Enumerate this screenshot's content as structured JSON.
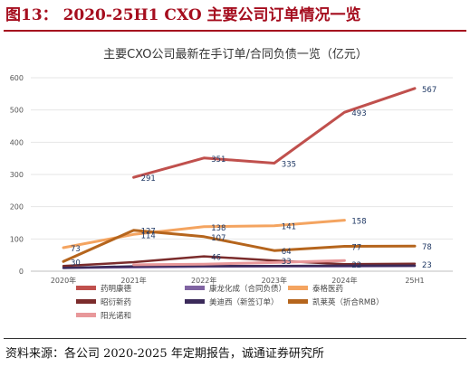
{
  "figure_title": "图13：  2020-25H1 CXO 主要公司订单情况一览",
  "source_note": "资料来源：各公司 2020-2025 年定期报告，诚通证券研究所",
  "chart_data": {
    "type": "line",
    "title": "主要CXO公司最新在手订单/合同负债一览（亿元）",
    "xlabel": "",
    "ylabel": "",
    "categories": [
      "2020年",
      "2021年",
      "2022年",
      "2023年",
      "2024年",
      "25H1"
    ],
    "yticks": [
      0,
      100,
      200,
      300,
      400,
      500,
      600
    ],
    "ylim": [
      0,
      600
    ],
    "grid": true,
    "legend_position": "bottom",
    "series": [
      {
        "name": "药明康德",
        "color": "#c0504d",
        "width": 3,
        "values": [
          null,
          291,
          351,
          335,
          493,
          567
        ],
        "labels": [
          "",
          "291",
          "351",
          "335",
          "493",
          "567"
        ]
      },
      {
        "name": "康龙化成（合同负债）",
        "color": "#8064a2",
        "width": 2.5,
        "values": [
          10,
          12,
          14,
          15,
          15,
          16
        ],
        "labels": []
      },
      {
        "name": "泰格医药",
        "color": "#f4a460",
        "width": 3,
        "values": [
          73,
          114,
          138,
          141,
          158,
          null
        ],
        "labels": [
          "73",
          "114",
          "138",
          "141",
          "158",
          ""
        ]
      },
      {
        "name": "昭衍新药",
        "color": "#7b2c2c",
        "width": 2.5,
        "values": [
          16,
          28,
          46,
          33,
          22,
          23
        ],
        "labels": [
          "",
          "",
          "46",
          "33",
          "22",
          "23"
        ]
      },
      {
        "name": "美迪西（新签订单）",
        "color": "#3b2a5a",
        "width": 2.5,
        "values": [
          10,
          15,
          16,
          16,
          17,
          17
        ],
        "labels": []
      },
      {
        "name": "凯莱英（折合RMB）",
        "color": "#b5651d",
        "width": 3,
        "values": [
          30,
          127,
          107,
          64,
          77,
          78
        ],
        "labels": [
          "30",
          "127",
          "107",
          "64",
          "77",
          "78"
        ]
      },
      {
        "name": "阳光诺和",
        "color": "#e8989a",
        "width": 3,
        "values": [
          null,
          20,
          22,
          27,
          33,
          null
        ],
        "labels": []
      }
    ]
  }
}
